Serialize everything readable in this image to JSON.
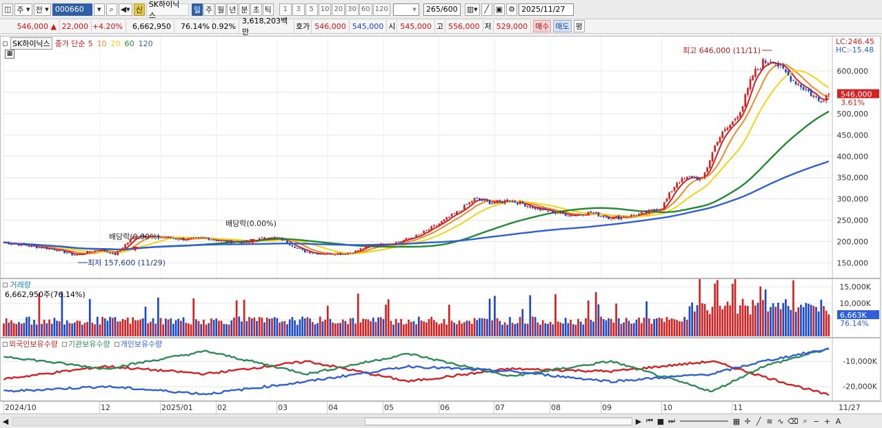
{
  "toolbar": {
    "market_label": "주",
    "prev_label": "전",
    "code_value": "000660",
    "signal_label": "신",
    "stock_name": "SK하이닉스",
    "periods": [
      "일",
      "주",
      "월",
      "년",
      "분",
      "초",
      "틱"
    ],
    "active_period": "일",
    "minute_steps": [
      "1",
      "3",
      "5",
      "10",
      "20",
      "30",
      "60",
      "120"
    ],
    "count_value": "265",
    "count_max": "/600",
    "date_value": "2025/11/27"
  },
  "quote": {
    "price": "546,000",
    "change": "22,000",
    "change_pct": "+4.20%",
    "volume": "6,662,950",
    "volume_ratio": "76.14%",
    "turnover_pct": "0.92%",
    "amount": "3,618,203백만",
    "ask_label": "호가",
    "ask1": "546,000",
    "ask2": "545,000",
    "open_label": "시",
    "open": "545,000",
    "high_label": "고",
    "high": "556,000",
    "low_label": "저",
    "low": "529,000",
    "buy_label": "매수",
    "sell_label": "매도",
    "eval_label": "평"
  },
  "price_panel": {
    "stock_tag": "SK하이닉스",
    "ma_title": "종가 단순",
    "ma_periods": [
      "5",
      "10",
      "20",
      "60",
      "120"
    ],
    "ma_colors": [
      "#d42020",
      "#f08a24",
      "#f2d410",
      "#1f8a30",
      "#2f5fd8"
    ],
    "high_note": "최고 646,000 (11/11)",
    "low_note": "최저 157,600 (11/29)",
    "div_notes": [
      "배당락(0.00%)",
      "배당락(0.00%)"
    ],
    "lc_label": "LC:246.45",
    "hc_label": "HC:-15.48",
    "price_tag": "546,000",
    "pct_tag": "3.61%"
  },
  "volume_panel": {
    "title": "거래량",
    "info": "6,662,950주(76.14%)",
    "tag_value": "6,663K",
    "tag_pct": "76.14%"
  },
  "holding_panel": {
    "legends": [
      "외국인보유수량",
      "기관보유수량",
      "개인보유수량"
    ],
    "colors": [
      "#d42020",
      "#2e8b57",
      "#2f5fd8"
    ]
  },
  "x_labels": [
    "2024/10",
    "12",
    "2025/01",
    "02",
    "03",
    "04",
    "05",
    "06",
    "07",
    "08",
    "09",
    "10",
    "11",
    "11/27"
  ],
  "chart_data": [
    {
      "type": "candlestick",
      "y_ticks": [
        150000,
        200000,
        250000,
        300000,
        350000,
        400000,
        450000,
        500000,
        550000,
        600000
      ],
      "y_tick_labels": [
        "150,000",
        "200,000",
        "250,000",
        "300,000",
        "350,000",
        "400,000",
        "450,000",
        "500,000",
        "550,000",
        "600,000"
      ],
      "ylim": [
        128000,
        668000
      ],
      "x_labels": [
        "2024/10",
        "12",
        "2025/01",
        "02",
        "03",
        "04",
        "05",
        "06",
        "07",
        "08",
        "09",
        "10",
        "11"
      ],
      "close_path": [
        [
          0,
          198000
        ],
        [
          20,
          182000
        ],
        [
          28,
          168000
        ],
        [
          38,
          182000
        ],
        [
          44,
          170000
        ],
        [
          52,
          215000
        ],
        [
          62,
          210000
        ],
        [
          72,
          205000
        ],
        [
          80,
          208000
        ],
        [
          88,
          200000
        ],
        [
          96,
          198000
        ],
        [
          104,
          210000
        ],
        [
          110,
          205000
        ],
        [
          118,
          178000
        ],
        [
          124,
          172000
        ],
        [
          134,
          172000
        ],
        [
          138,
          175000
        ],
        [
          144,
          190000
        ],
        [
          154,
          196000
        ],
        [
          164,
          215000
        ],
        [
          172,
          242000
        ],
        [
          180,
          272000
        ],
        [
          186,
          300000
        ],
        [
          194,
          290000
        ],
        [
          200,
          298000
        ],
        [
          212,
          275000
        ],
        [
          224,
          262000
        ],
        [
          232,
          268000
        ],
        [
          240,
          255000
        ],
        [
          250,
          262000
        ],
        [
          260,
          280000
        ],
        [
          266,
          340000
        ],
        [
          272,
          352000
        ],
        [
          276,
          345000
        ],
        [
          282,
          440000
        ],
        [
          288,
          480000
        ],
        [
          292,
          520000
        ],
        [
          296,
          590000
        ],
        [
          300,
          620000
        ],
        [
          304,
          628000
        ],
        [
          308,
          600000
        ],
        [
          312,
          580000
        ],
        [
          318,
          552000
        ],
        [
          322,
          530000
        ],
        [
          326,
          546000
        ]
      ],
      "ma_series": [
        {
          "name": "5",
          "color": "#d42020"
        },
        {
          "name": "10",
          "color": "#f08a24"
        },
        {
          "name": "20",
          "color": "#f2d410"
        },
        {
          "name": "60",
          "color": "#1f8a30"
        },
        {
          "name": "120",
          "color": "#2f5fd8"
        }
      ],
      "extremes": {
        "high": 646000,
        "high_date": "11/11",
        "low": 157600,
        "low_date": "11/29"
      }
    },
    {
      "type": "bar",
      "title": "거래량",
      "y_ticks": [
        5000,
        10000,
        15000
      ],
      "y_tick_labels": [
        "",
        "10,000K",
        "15,000K"
      ],
      "ylim": [
        0,
        16500
      ]
    },
    {
      "type": "line",
      "title": "외국인보유수량 / 기관보유수량 / 개인보유수량",
      "y_ticks": [
        -10000,
        -20000
      ],
      "y_tick_labels": [
        "-10,000K",
        "-20,000K"
      ],
      "ylim": [
        -25000,
        -2000
      ]
    }
  ]
}
